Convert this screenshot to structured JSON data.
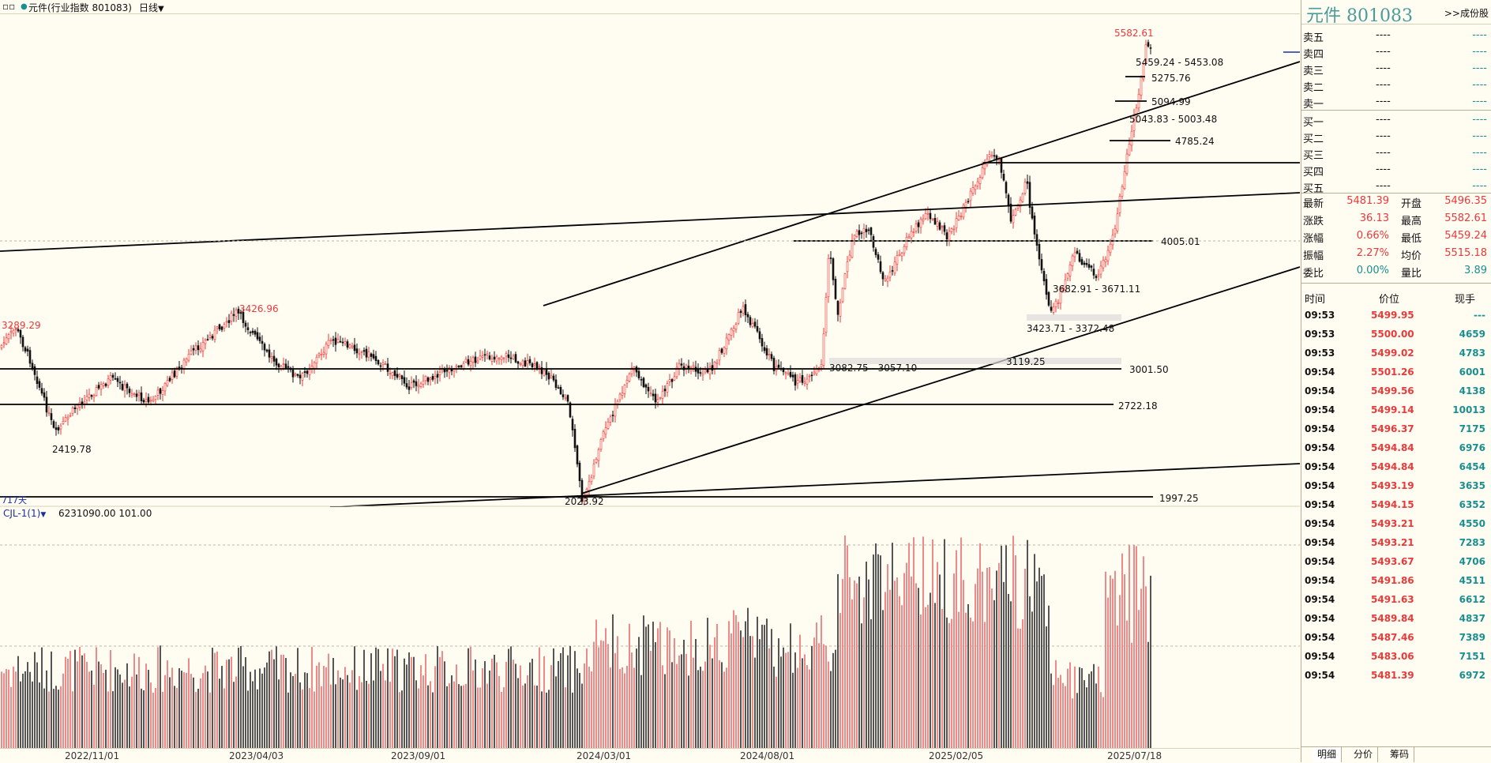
{
  "topbar": {
    "mode_glyph": "▫▫",
    "dot": "●",
    "title": "元件(行业指数  801083)",
    "period": "日线"
  },
  "chart": {
    "xaxis_labels": [
      "2022/11/01",
      "2023/04/03",
      "2023/09/01",
      "2024/03/01",
      "2024/08/01",
      "2025/02/05",
      "2025/07/18"
    ],
    "price_annotations": {
      "high_left": "3289.29",
      "low_2022": "2419.78",
      "high_2023": "3426.96",
      "low_2024": "2023.92",
      "peak": "5582.61",
      "range_top": "5459.24 - 5453.08",
      "lvl_5275": "5275.76",
      "lvl_5094": "5094.99",
      "range_5043": "5043.83 - 5003.48",
      "lvl_4785": "4785.24",
      "lvl_4005": "4005.01",
      "range_3682": "3682.91 - 3671.11",
      "range_3423": "3423.71 - 3372.48",
      "lvl_3119": "3119.25",
      "range_3082": "3082.75 - 3057.10",
      "lvl_3001": "3001.50",
      "lvl_2722": "2722.18",
      "lvl_1997": "1997.25"
    },
    "days_label": "717天",
    "volume_indicator": {
      "name": "CJL-1(1)",
      "values": "6231090.00    101.00"
    },
    "colors": {
      "up": "#e83a3a",
      "down": "#111111",
      "vol_up": "#f08a8a",
      "vol_down": "#555555"
    }
  },
  "panel": {
    "name": "元件  801083",
    "link": ">>成份股",
    "order_book": [
      {
        "label": "卖五",
        "price": "----",
        "vol": "----"
      },
      {
        "label": "卖四",
        "price": "----",
        "vol": "----"
      },
      {
        "label": "卖三",
        "price": "----",
        "vol": "----"
      },
      {
        "label": "卖二",
        "price": "----",
        "vol": "----"
      },
      {
        "label": "卖一",
        "price": "----",
        "vol": "----"
      },
      {
        "label": "买一",
        "price": "----",
        "vol": "----"
      },
      {
        "label": "买二",
        "price": "----",
        "vol": "----"
      },
      {
        "label": "买三",
        "price": "----",
        "vol": "----"
      },
      {
        "label": "买四",
        "price": "----",
        "vol": "----"
      },
      {
        "label": "买五",
        "price": "----",
        "vol": "----"
      }
    ],
    "stats": [
      {
        "l1": "最新",
        "v1": "5481.39",
        "l2": "开盘",
        "v2": "5496.35"
      },
      {
        "l1": "涨跌",
        "v1": "36.13",
        "l2": "最高",
        "v2": "5582.61"
      },
      {
        "l1": "涨幅",
        "v1": "0.66%",
        "l2": "最低",
        "v2": "5459.24"
      },
      {
        "l1": "振幅",
        "v1": "2.27%",
        "l2": "均价",
        "v2": "5515.18"
      },
      {
        "l1": "委比",
        "v1": "0.00%",
        "l2": "量比",
        "v2": "3.89"
      }
    ],
    "ticks_header": {
      "time": "时间",
      "price": "价位",
      "vol": "现手"
    },
    "ticks": [
      {
        "time": "09:53",
        "price": "5499.95",
        "vol": "---"
      },
      {
        "time": "09:53",
        "price": "5500.00",
        "vol": "4659"
      },
      {
        "time": "09:53",
        "price": "5499.02",
        "vol": "4783"
      },
      {
        "time": "09:54",
        "price": "5501.26",
        "vol": "6001"
      },
      {
        "time": "09:54",
        "price": "5499.56",
        "vol": "4138"
      },
      {
        "time": "09:54",
        "price": "5499.14",
        "vol": "10013"
      },
      {
        "time": "09:54",
        "price": "5496.37",
        "vol": "7175"
      },
      {
        "time": "09:54",
        "price": "5494.84",
        "vol": "6976"
      },
      {
        "time": "09:54",
        "price": "5494.84",
        "vol": "6454"
      },
      {
        "time": "09:54",
        "price": "5493.19",
        "vol": "3635"
      },
      {
        "time": "09:54",
        "price": "5494.15",
        "vol": "6352"
      },
      {
        "time": "09:54",
        "price": "5493.21",
        "vol": "4550"
      },
      {
        "time": "09:54",
        "price": "5493.21",
        "vol": "7283"
      },
      {
        "time": "09:54",
        "price": "5493.67",
        "vol": "4706"
      },
      {
        "time": "09:54",
        "price": "5491.86",
        "vol": "4511"
      },
      {
        "time": "09:54",
        "price": "5491.63",
        "vol": "6612"
      },
      {
        "time": "09:54",
        "price": "5489.84",
        "vol": "4837"
      },
      {
        "time": "09:54",
        "price": "5487.46",
        "vol": "7389"
      },
      {
        "time": "09:54",
        "price": "5483.06",
        "vol": "7151"
      },
      {
        "time": "09:54",
        "price": "5481.39",
        "vol": "6972"
      }
    ],
    "tabs": [
      "明细",
      "分价",
      "筹码"
    ],
    "colors": {
      "name": "#4a9b9b",
      "red": "#e83a3a",
      "teal": "#1a8f8f",
      "dash": "#1a8f8f"
    }
  }
}
